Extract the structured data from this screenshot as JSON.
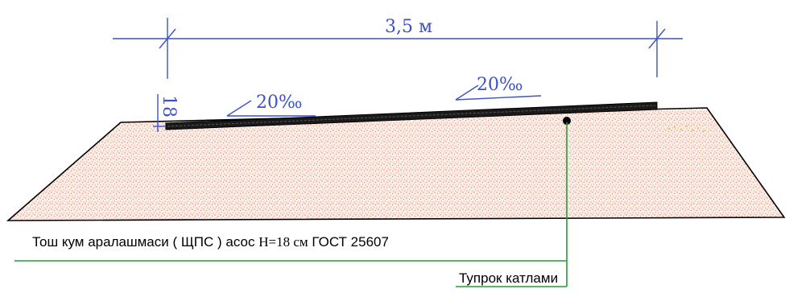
{
  "dimension": {
    "width_label": "3,5 м",
    "thickness_label": "18"
  },
  "slopes": {
    "left": "20‰",
    "right": "20‰"
  },
  "callouts": {
    "base_layer_prefix": "Тош кум аралашмаси ( ЩПС ) асос ",
    "base_layer_height": "Н=18 см",
    "base_layer_suffix": " ГОСТ 25607",
    "embankment": "Тупрок катлами"
  },
  "colors": {
    "dimension": "#3c52c9",
    "fill_dots": "#e0553a",
    "leader": "#1aa332",
    "outline": "#000000"
  }
}
